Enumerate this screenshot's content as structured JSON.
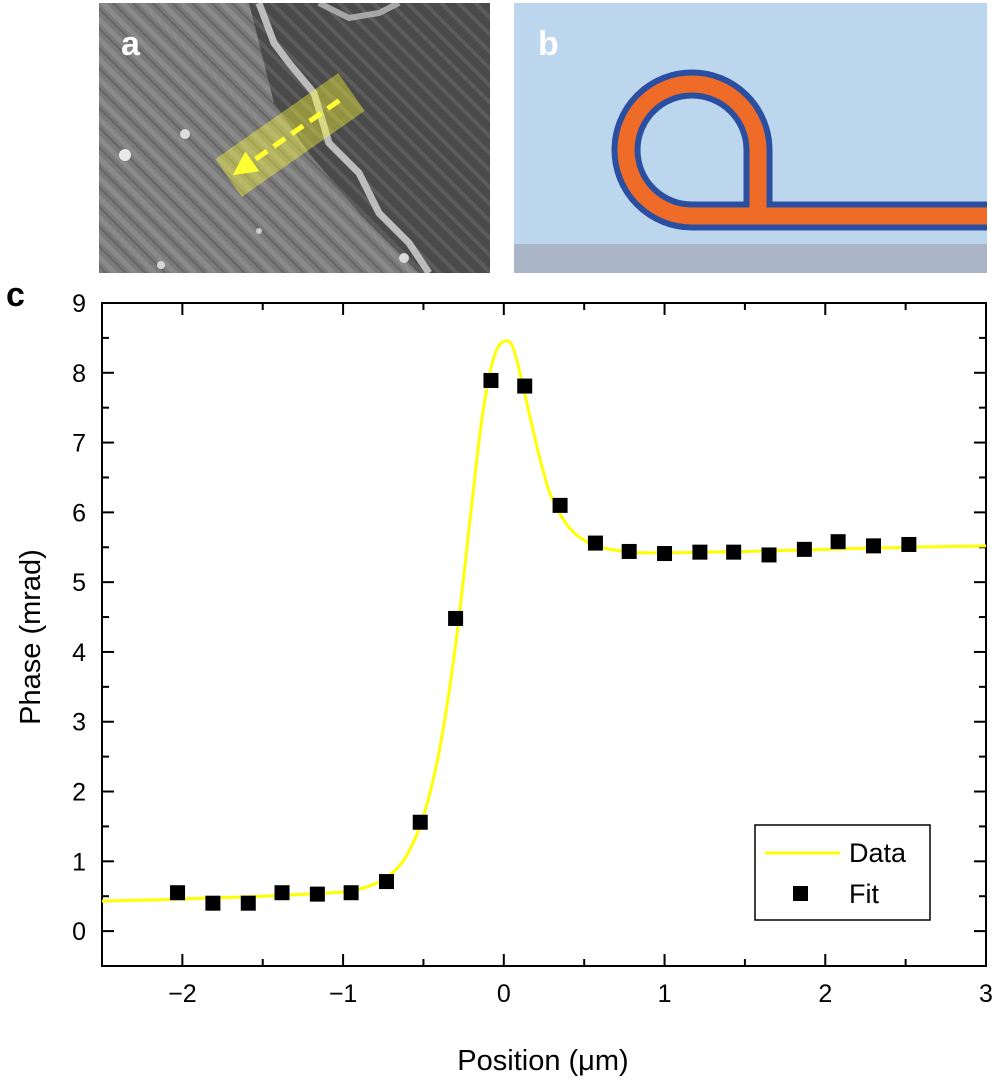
{
  "panels": {
    "a": {
      "label": "a"
    },
    "b": {
      "label": "b"
    },
    "c": {
      "label": "c"
    }
  },
  "colors": {
    "fit_line": "#ffff00",
    "data_marker": "#000000",
    "waveguide_core": "#ef6c28",
    "waveguide_clad": "#2b4fa0",
    "background_b": "#bcd6ee",
    "substrate_b": "#aab6c8",
    "arrow": "#ffff33"
  },
  "chart_data": {
    "type": "scatter",
    "xlabel": "Position (μm)",
    "ylabel": "Phase (mrad)",
    "xlim": [
      -2.5,
      3
    ],
    "ylim": [
      -0.5,
      9
    ],
    "xticks": [
      -2,
      -1,
      0,
      1,
      2,
      3
    ],
    "xtick_labels": [
      "−2",
      "−1",
      "0",
      "1",
      "2",
      "3"
    ],
    "yticks": [
      0,
      1,
      2,
      3,
      4,
      5,
      6,
      7,
      8,
      9
    ],
    "ytick_labels": [
      "0",
      "1",
      "2",
      "3",
      "4",
      "5",
      "6",
      "7",
      "8",
      "9"
    ],
    "grid": false,
    "legend_position": "bottom-right",
    "series": [
      {
        "name": "Data",
        "kind": "line",
        "color": "#ffff00",
        "x": [
          -2.5,
          -2.0,
          -1.5,
          -1.0,
          -0.9,
          -0.8,
          -0.7,
          -0.6,
          -0.5,
          -0.4,
          -0.3,
          -0.2,
          -0.15,
          -0.1,
          -0.05,
          0.0,
          0.05,
          0.1,
          0.15,
          0.2,
          0.25,
          0.3,
          0.4,
          0.5,
          0.6,
          0.8,
          1.0,
          1.5,
          2.0,
          2.5,
          3.0
        ],
        "y": [
          0.43,
          0.46,
          0.5,
          0.56,
          0.6,
          0.68,
          0.82,
          1.1,
          1.65,
          2.6,
          4.1,
          6.1,
          7.1,
          7.85,
          8.3,
          8.45,
          8.4,
          8.0,
          7.5,
          7.0,
          6.55,
          6.2,
          5.8,
          5.6,
          5.5,
          5.43,
          5.42,
          5.44,
          5.47,
          5.5,
          5.52
        ]
      },
      {
        "name": "Fit",
        "kind": "scatter",
        "color": "#000000",
        "x": [
          -2.03,
          -1.81,
          -1.59,
          -1.38,
          -1.16,
          -0.95,
          -0.73,
          -0.52,
          -0.3,
          -0.08,
          0.13,
          0.35,
          0.57,
          0.78,
          1.0,
          1.22,
          1.43,
          1.65,
          1.87,
          2.08,
          2.3,
          2.52
        ],
        "y": [
          0.55,
          0.4,
          0.4,
          0.55,
          0.53,
          0.55,
          0.71,
          1.56,
          4.48,
          7.89,
          7.81,
          6.1,
          5.56,
          5.44,
          5.41,
          5.43,
          5.43,
          5.39,
          5.47,
          5.58,
          5.52,
          5.54
        ]
      }
    ]
  }
}
